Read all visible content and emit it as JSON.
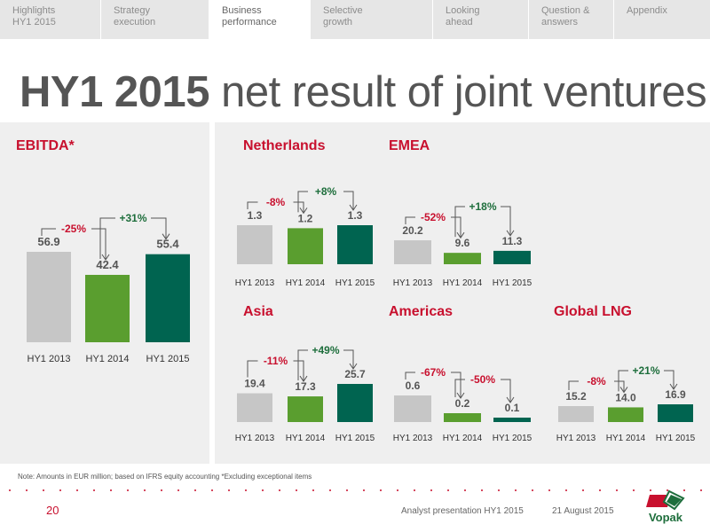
{
  "nav": {
    "tabs": [
      {
        "l1": "Highlights",
        "l2": "HY1 2015"
      },
      {
        "l1": "Strategy",
        "l2": "execution"
      },
      {
        "l1": "Business",
        "l2": "performance"
      },
      {
        "l1": "Selective",
        "l2": "growth"
      },
      {
        "l1": "Looking",
        "l2": "ahead"
      },
      {
        "l1": "Question &",
        "l2": "answers"
      },
      {
        "l1": "Appendix",
        "l2": ""
      }
    ]
  },
  "title": {
    "bold": "HY1 2015",
    "rest": " net result of joint ventures"
  },
  "colors": {
    "gray": "#c6c6c6",
    "light_green": "#5a9e2f",
    "dark_green": "#006450",
    "red": "#c8102e",
    "change_green": "#1e6e3c"
  },
  "chart_data": [
    {
      "type": "bar",
      "title": "EBITDA*",
      "categories": [
        "HY1 2013",
        "HY1 2014",
        "HY1 2015"
      ],
      "values": [
        56.9,
        42.4,
        55.4
      ],
      "labels": [
        "56.9",
        "42.4",
        "55.4"
      ],
      "changes": [
        "-25%",
        "+31%"
      ]
    },
    {
      "type": "bar",
      "title": "Netherlands",
      "categories": [
        "HY1 2013",
        "HY1 2014",
        "HY1 2015"
      ],
      "values": [
        1.3,
        1.2,
        1.3
      ],
      "labels": [
        "1.3",
        "1.2",
        "1.3"
      ],
      "changes": [
        "-8%",
        "+8%"
      ]
    },
    {
      "type": "bar",
      "title": "EMEA",
      "categories": [
        "HY1 2013",
        "HY1 2014",
        "HY1 2015"
      ],
      "values": [
        20.2,
        9.6,
        11.3
      ],
      "labels": [
        "20.2",
        "9.6",
        "11.3"
      ],
      "changes": [
        "-52%",
        "+18%"
      ]
    },
    {
      "type": "bar",
      "title": "Asia",
      "categories": [
        "HY1 2013",
        "HY1 2014",
        "HY1 2015"
      ],
      "values": [
        19.4,
        17.3,
        25.7
      ],
      "labels": [
        "19.4",
        "17.3",
        "25.7"
      ],
      "changes": [
        "-11%",
        "+49%"
      ]
    },
    {
      "type": "bar",
      "title": "Americas",
      "categories": [
        "HY1 2013",
        "HY1 2014",
        "HY1 2015"
      ],
      "values": [
        0.6,
        0.2,
        0.1
      ],
      "labels": [
        "0.6",
        "0.2",
        "0.1"
      ],
      "changes": [
        "-67%",
        "-50%"
      ]
    },
    {
      "type": "bar",
      "title": "Global LNG",
      "categories": [
        "HY1 2013",
        "HY1 2014",
        "HY1 2015"
      ],
      "values": [
        15.2,
        14.0,
        16.9
      ],
      "labels": [
        "15.2",
        "14.0",
        "16.9"
      ],
      "changes": [
        "-8%",
        "+21%"
      ]
    }
  ],
  "note": "Note: Amounts in EUR million; based on IFRS equity accounting *Excluding exceptional items",
  "footer": {
    "page": "20",
    "presentation": "Analyst presentation HY1 2015",
    "date": "21 August 2015",
    "logo_text": "Vopak"
  }
}
